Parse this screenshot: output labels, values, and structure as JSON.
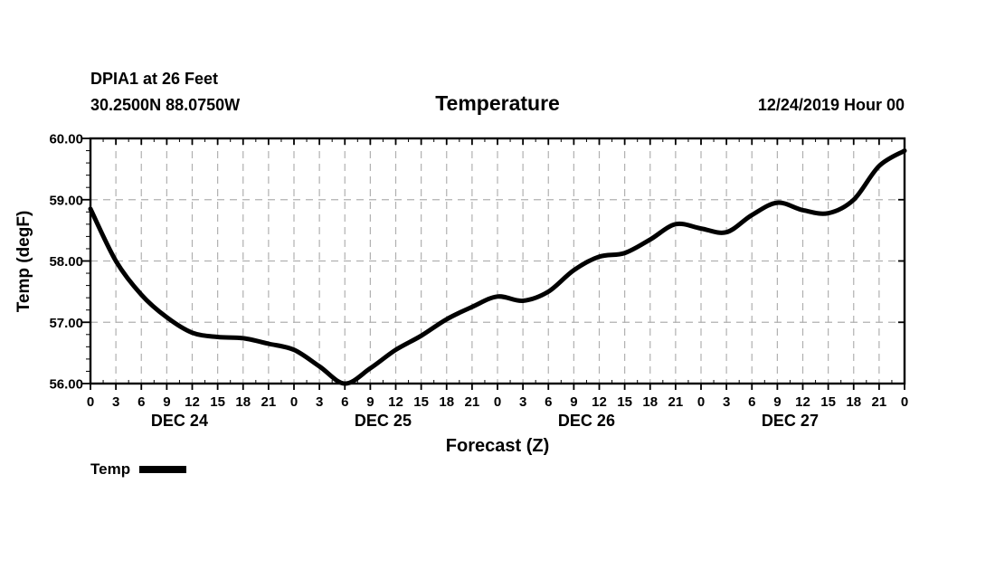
{
  "header": {
    "station": "DPIA1 at 26 Feet",
    "coords": "30.2500N 88.0750W",
    "title": "Temperature",
    "init_date": "12/24/2019 Hour 00"
  },
  "chart_data": {
    "type": "line",
    "title": "Temperature",
    "xlabel": "Forecast (Z)",
    "ylabel": "Temp (degF)",
    "ylim": [
      56,
      60
    ],
    "ytick_labels": [
      "56.00",
      "57.00",
      "58.00",
      "59.00",
      "60.00"
    ],
    "xlim_hours": [
      0,
      96
    ],
    "xtick_step_hours": 3,
    "xminor_step_hours": 1.5,
    "yminor_step": 0.2,
    "xtick_labels": [
      "0",
      "3",
      "6",
      "9",
      "12",
      "15",
      "18",
      "21",
      "0",
      "3",
      "6",
      "9",
      "12",
      "15",
      "18",
      "21",
      "0",
      "3",
      "6",
      "9",
      "12",
      "15",
      "18",
      "21",
      "0",
      "3",
      "6",
      "9",
      "12",
      "15",
      "18",
      "21",
      "0"
    ],
    "day_labels": [
      "DEC 24",
      "DEC 25",
      "DEC 26",
      "DEC 27"
    ],
    "grid": true,
    "legend_position": "bottom-left",
    "series": [
      {
        "name": "Temp",
        "color": "#000000",
        "hours": [
          0,
          3,
          6,
          9,
          12,
          15,
          18,
          21,
          24,
          27,
          30,
          33,
          36,
          39,
          42,
          45,
          48,
          51,
          54,
          57,
          60,
          63,
          66,
          69,
          72,
          75,
          78,
          81,
          84,
          87,
          90,
          93,
          96
        ],
        "values": [
          58.85,
          58.0,
          57.45,
          57.08,
          56.83,
          56.76,
          56.74,
          56.65,
          56.55,
          56.28,
          56.0,
          56.25,
          56.55,
          56.78,
          57.05,
          57.25,
          57.42,
          57.35,
          57.5,
          57.85,
          58.07,
          58.13,
          58.35,
          58.6,
          58.53,
          58.47,
          58.75,
          58.95,
          58.83,
          58.78,
          59.0,
          59.55,
          59.8
        ]
      }
    ]
  },
  "colors": {
    "line": "#000000",
    "grid": "#b0b0b0",
    "axis": "#000000",
    "background": "#ffffff"
  }
}
